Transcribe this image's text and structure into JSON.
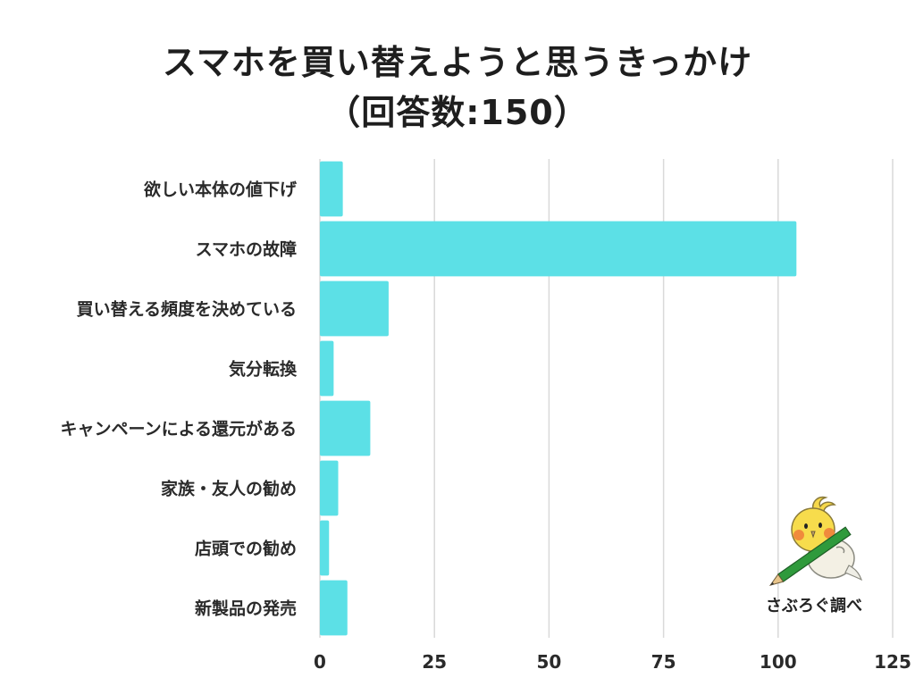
{
  "title": {
    "line1": "スマホを買い替えようと思うきっかけ",
    "line2": "（回答数:150）"
  },
  "credit": "さぶろぐ調べ",
  "colors": {
    "bar": "#5ce0e6",
    "grid": "#d9d9d9",
    "text": "#222222"
  },
  "mascot_icon": "bird-with-pencil-icon",
  "chart_data": {
    "type": "bar",
    "orientation": "horizontal",
    "title": "スマホを買い替えようと思うきっかけ（回答数:150）",
    "categories": [
      "欲しい本体の値下げ",
      "スマホの故障",
      "買い替える頻度を決めている",
      "気分転換",
      "キャンペーンによる還元がある",
      "家族・友人の勧め",
      "店頭での勧め",
      "新製品の発売"
    ],
    "values": [
      5,
      104,
      15,
      3,
      11,
      4,
      2,
      6
    ],
    "xlim": [
      0,
      125
    ],
    "xticks": [
      0,
      25,
      50,
      75,
      100,
      125
    ],
    "xlabel": "",
    "ylabel": "",
    "grid": "vertical",
    "legend": "none"
  }
}
